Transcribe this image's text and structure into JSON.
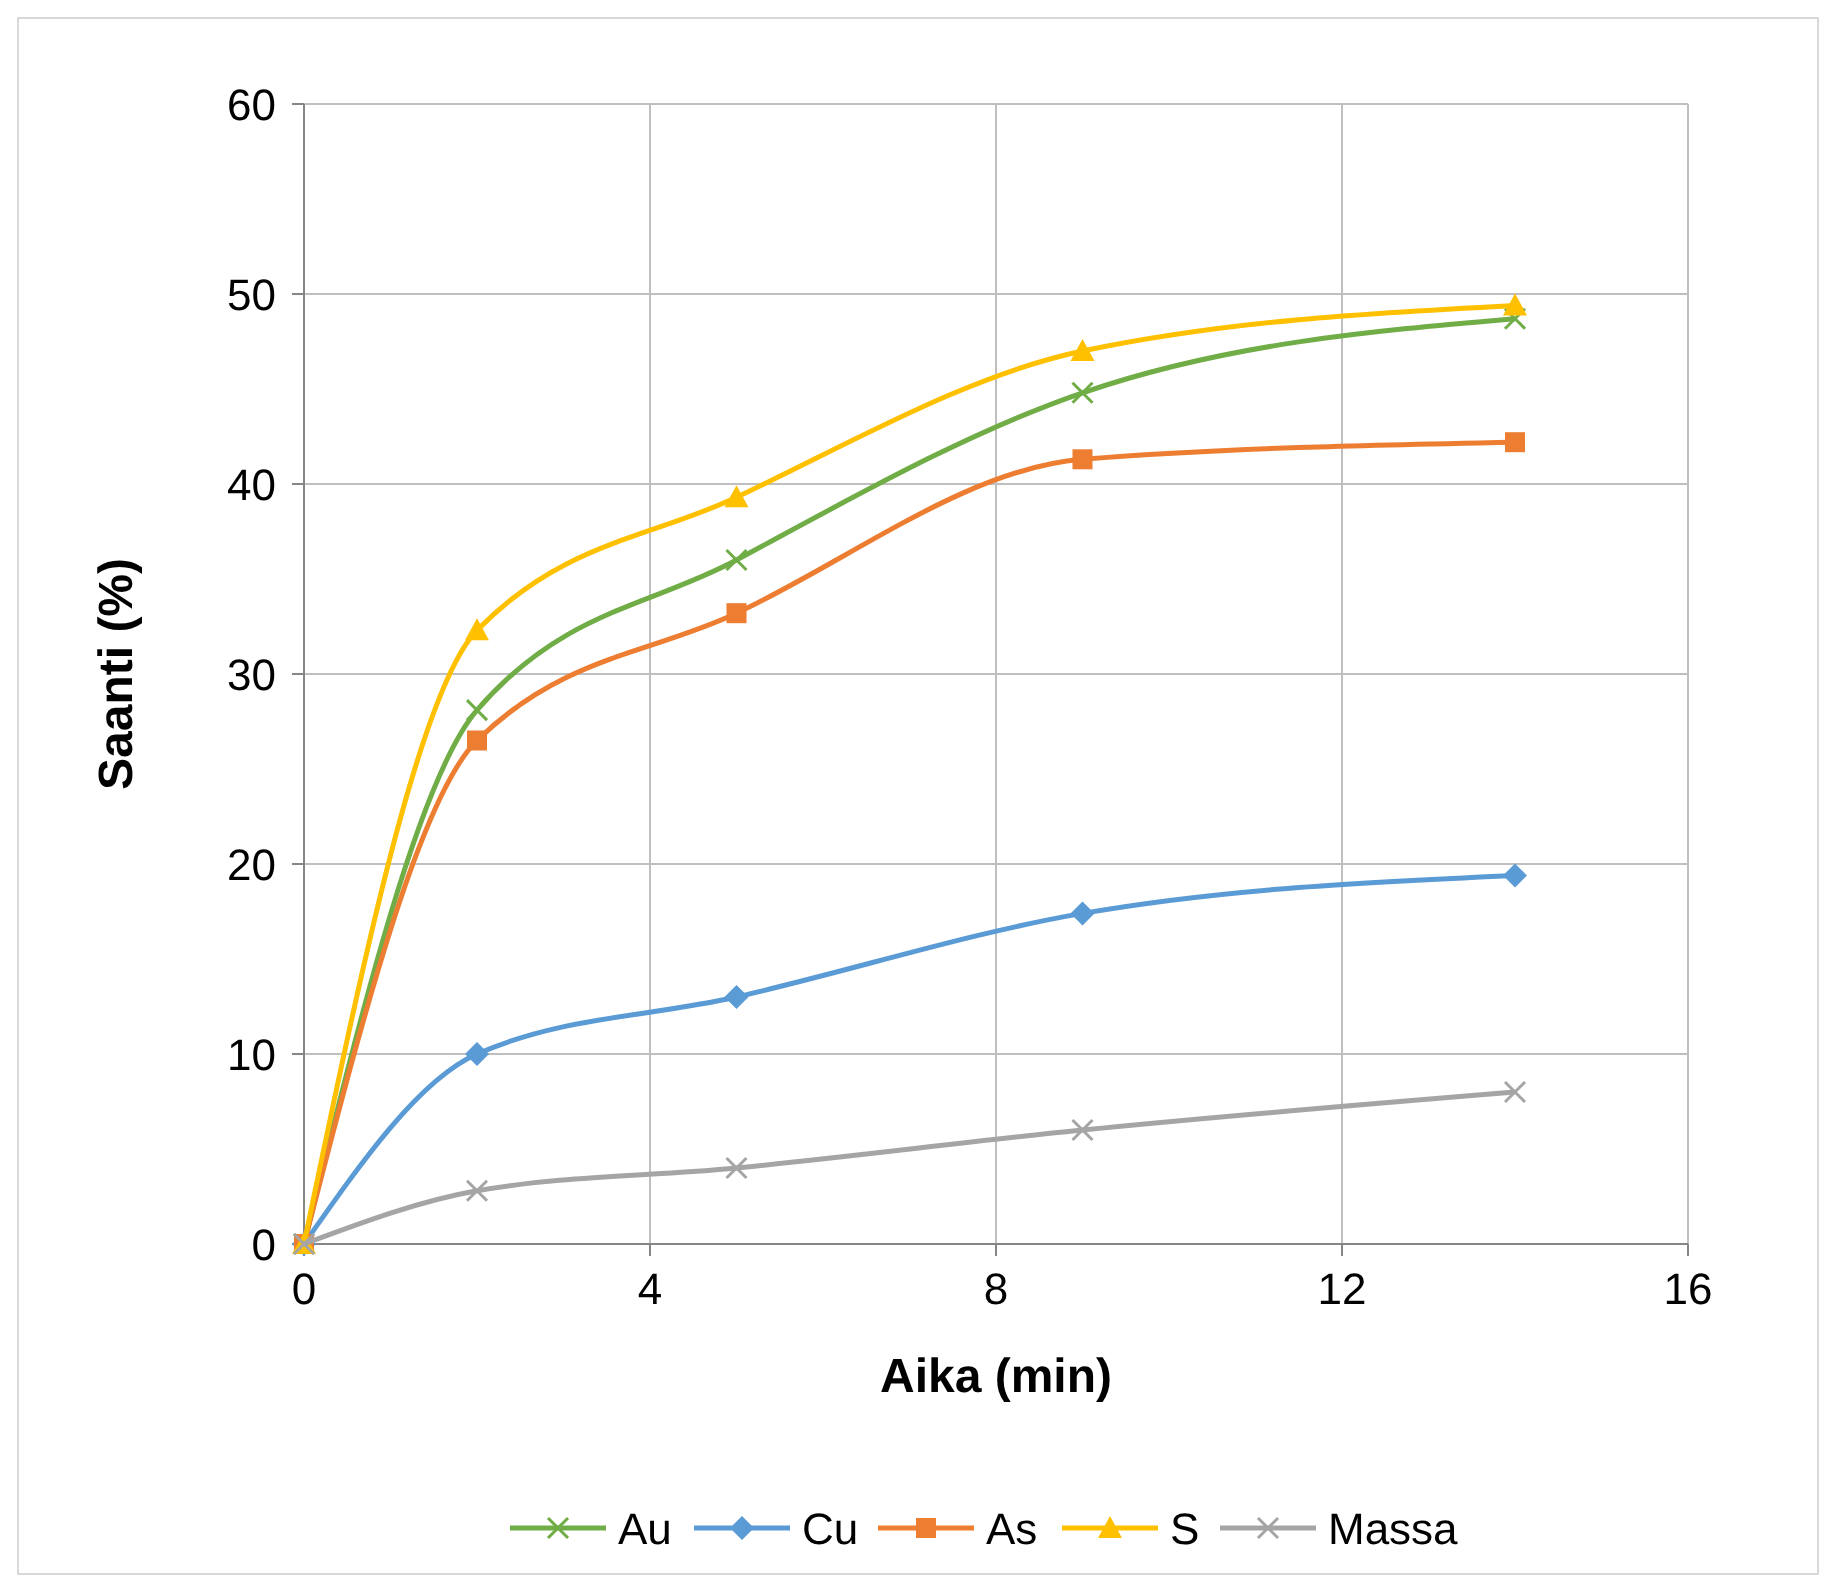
{
  "chart_data": {
    "type": "line",
    "xlabel": "Aika (min)",
    "ylabel": "Saanti (%)",
    "x": [
      0,
      2,
      5,
      9,
      14
    ],
    "xlim": [
      0,
      16
    ],
    "xticks": [
      0,
      4,
      8,
      12,
      16
    ],
    "ylim": [
      0,
      60
    ],
    "yticks": [
      0,
      10,
      20,
      30,
      40,
      50,
      60
    ],
    "grid": true,
    "legend": "bottom",
    "series": [
      {
        "name": "Au",
        "color": "#70ad47",
        "marker": "cross",
        "values": [
          0,
          28.1,
          36,
          44.8,
          48.7
        ]
      },
      {
        "name": "Cu",
        "color": "#5b9bd5",
        "marker": "diamond",
        "values": [
          0,
          10,
          13,
          17.4,
          19.4
        ]
      },
      {
        "name": "As",
        "color": "#ed7d31",
        "marker": "square",
        "values": [
          0,
          26.5,
          33.2,
          41.3,
          42.2
        ]
      },
      {
        "name": "S",
        "color": "#ffc000",
        "marker": "triangle",
        "values": [
          0,
          32.3,
          39.3,
          47,
          49.4
        ]
      },
      {
        "name": "Massa",
        "color": "#a5a5a5",
        "marker": "cross",
        "values": [
          0,
          2.8,
          4,
          6,
          8
        ]
      }
    ]
  }
}
